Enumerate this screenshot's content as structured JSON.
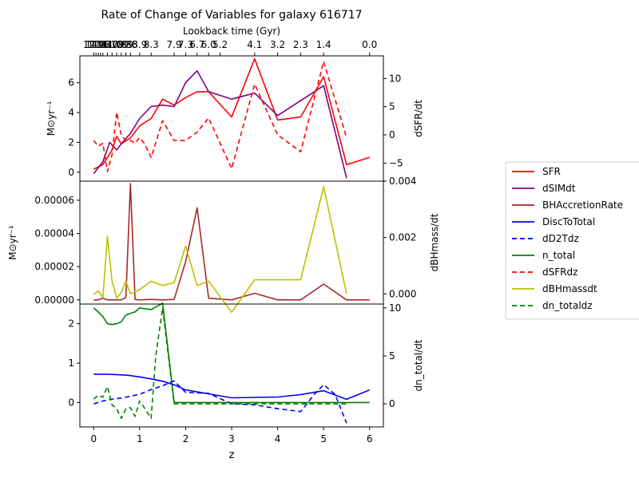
{
  "chart_data": {
    "type": "line",
    "title": "Rate of Change of Variables for galaxy 616717",
    "top_axis_label": "Lookback time (Gyr)",
    "top_ticks": [
      {
        "z": 0.0,
        "label": "12.9"
      },
      {
        "z": 0.05,
        "label": "12.8"
      },
      {
        "z": 0.1,
        "label": "12.6"
      },
      {
        "z": 0.15,
        "label": "12.3"
      },
      {
        "z": 0.2,
        "label": "12.1"
      },
      {
        "z": 0.3,
        "label": "11.7"
      },
      {
        "z": 0.4,
        "label": "11.2"
      },
      {
        "z": 0.5,
        "label": "10.8"
      },
      {
        "z": 0.6,
        "label": "10.3"
      },
      {
        "z": 0.7,
        "label": "9.9"
      },
      {
        "z": 0.8,
        "label": "9.5"
      },
      {
        "z": 1.0,
        "label": "8.9"
      },
      {
        "z": 1.25,
        "label": "8.3"
      },
      {
        "z": 1.75,
        "label": "7.9"
      },
      {
        "z": 2.0,
        "label": "7.3"
      },
      {
        "z": 2.25,
        "label": "6.7"
      },
      {
        "z": 2.5,
        "label": "6.0"
      },
      {
        "z": 2.75,
        "label": "5.2"
      },
      {
        "z": 3.5,
        "label": "4.1"
      },
      {
        "z": 4.0,
        "label": "3.2"
      },
      {
        "z": 4.5,
        "label": "2.3"
      },
      {
        "z": 5.0,
        "label": "1.4"
      },
      {
        "z": 6.0,
        "label": "0.0"
      }
    ],
    "xlabel": "z",
    "xlim": [
      -0.3,
      6.3
    ],
    "x_ticks": [
      0,
      1,
      2,
      3,
      4,
      5,
      6
    ],
    "panels": [
      {
        "ylabel_left": "M⊙yr⁻¹",
        "ylabel_right": "dSFR/dt",
        "ylim_left": [
          -0.6,
          7.8
        ],
        "ylim_right": [
          -8.2,
          14.0
        ],
        "yticks_left": [
          0,
          2,
          4,
          6
        ],
        "yticks_right": [
          -5,
          0,
          5,
          10
        ],
        "yticks_left_labels": [
          "0",
          "2",
          "4",
          "6"
        ],
        "yticks_right_labels": [
          "−5",
          "0",
          "5",
          "10"
        ],
        "series": [
          {
            "name": "SFR",
            "color": "#ff0000",
            "dash": false,
            "axis": "left",
            "x": [
              0,
              0.2,
              0.4,
              0.5,
              0.6,
              0.8,
              1.0,
              1.25,
              1.5,
              1.75,
              2.0,
              2.25,
              2.5,
              3.0,
              3.5,
              4.0,
              4.5,
              5.0,
              5.5,
              6.0
            ],
            "y": [
              0.2,
              0.5,
              1.5,
              2.4,
              1.9,
              2.3,
              3.1,
              3.6,
              4.9,
              4.5,
              5.0,
              5.4,
              5.4,
              3.7,
              7.6,
              3.5,
              3.7,
              6.4,
              0.5,
              1.0
            ]
          },
          {
            "name": "dSIMdt",
            "color": "#800080",
            "dash": false,
            "axis": "left",
            "x": [
              0,
              0.2,
              0.35,
              0.5,
              0.6,
              0.8,
              1.0,
              1.25,
              1.5,
              1.75,
              2.0,
              2.25,
              2.5,
              3.0,
              3.5,
              4.0,
              4.5,
              5.0,
              5.5
            ],
            "y": [
              -0.1,
              0.7,
              2.0,
              1.5,
              1.9,
              2.6,
              3.6,
              4.4,
              4.5,
              4.4,
              6.0,
              6.8,
              5.4,
              4.9,
              5.3,
              3.8,
              4.8,
              5.8,
              -0.4
            ]
          },
          {
            "name": "dSFRdz",
            "color": "#ff0000",
            "dash": true,
            "axis": "right",
            "x": [
              0,
              0.1,
              0.2,
              0.3,
              0.4,
              0.5,
              0.6,
              0.7,
              0.8,
              0.9,
              1.0,
              1.1,
              1.25,
              1.5,
              1.75,
              2.0,
              2.25,
              2.5,
              3.0,
              3.5,
              4.0,
              4.5,
              5.0,
              5.5
            ],
            "y": [
              -1.0,
              -2.0,
              -1.5,
              -6.5,
              -3.5,
              4.0,
              0.0,
              -1.0,
              -1.0,
              -1.5,
              -0.5,
              -1.5,
              -4.0,
              2.5,
              -1.0,
              -1.0,
              0.5,
              3.0,
              -6.0,
              9.0,
              0.0,
              -3.0,
              13.0,
              -0.5
            ]
          }
        ]
      },
      {
        "ylabel_left": "M⊙yr⁻¹",
        "ylabel_right": "dBHmass/dt",
        "ylim_left": [
          -2.5e-06,
          7.15e-05
        ],
        "ylim_right": [
          -0.00036,
          0.004
        ],
        "yticks_left": [
          0,
          2e-05,
          4e-05,
          6e-05
        ],
        "yticks_right": [
          0,
          0.002,
          0.004
        ],
        "yticks_left_labels": [
          "0.00000",
          "0.00002",
          "0.00004",
          "0.00006"
        ],
        "yticks_right_labels": [
          "0.000",
          "0.002",
          "0.004"
        ],
        "series": [
          {
            "name": "BHAccretionRate",
            "color": "#a52a2a",
            "dash": false,
            "axis": "left",
            "x": [
              0,
              0.1,
              0.2,
              0.3,
              0.4,
              0.5,
              0.6,
              0.7,
              0.8,
              0.9,
              1.0,
              1.25,
              1.5,
              1.75,
              2.0,
              2.25,
              2.5,
              3.0,
              3.5,
              4.0,
              4.5,
              5.0,
              5.5,
              6.0
            ],
            "y": [
              0,
              0,
              1e-06,
              0,
              0,
              0,
              0,
              1.5e-06,
              7e-05,
              3e-07,
              0,
              3e-07,
              0,
              3e-07,
              2.3e-05,
              5.55e-05,
              1e-06,
              0,
              4e-06,
              0,
              0,
              9.5e-06,
              0,
              0
            ]
          },
          {
            "name": "dBHmassdt",
            "color": "#bfbf00",
            "dash": false,
            "axis": "right",
            "x": [
              0,
              0.1,
              0.2,
              0.3,
              0.4,
              0.5,
              0.6,
              0.7,
              0.8,
              1.0,
              1.25,
              1.5,
              1.75,
              2.0,
              2.25,
              2.5,
              3.0,
              3.5,
              4.0,
              4.5,
              5.0,
              5.5
            ],
            "y": [
              -3e-05,
              0.00011,
              -0.00013,
              0.00205,
              0.00045,
              -0.00015,
              5e-05,
              0.00045,
              0.0,
              0.00015,
              0.00045,
              0.0003,
              0.0004,
              0.0017,
              0.0003,
              0.00045,
              -0.00065,
              0.0005,
              0.0005,
              0.0005,
              0.0038,
              0.0
            ]
          }
        ]
      },
      {
        "ylabel_left": "",
        "ylabel_right": "dn_total/dt",
        "ylim_left": [
          -0.62,
          2.5
        ],
        "ylim_right": [
          -2.4,
          10.4
        ],
        "yticks_left": [
          0,
          1,
          2
        ],
        "yticks_right": [
          0,
          5,
          10
        ],
        "yticks_left_labels": [
          "0",
          "1",
          "2"
        ],
        "yticks_right_labels": [
          "0",
          "5",
          "10"
        ],
        "series": [
          {
            "name": "n_total",
            "color": "#008000",
            "dash": false,
            "axis": "left",
            "x": [
              0,
              0.1,
              0.2,
              0.3,
              0.4,
              0.5,
              0.6,
              0.7,
              0.8,
              0.9,
              1.0,
              1.25,
              1.5,
              1.75,
              2.0,
              3.0,
              4.0,
              5.0,
              6.0
            ],
            "y": [
              2.4,
              2.3,
              2.18,
              2.0,
              1.98,
              2.0,
              2.05,
              2.22,
              2.26,
              2.3,
              2.4,
              2.36,
              2.52,
              0.0,
              0.0,
              0.0,
              0.0,
              0.0,
              0.0
            ]
          },
          {
            "name": "DiscToTotal",
            "color": "#0000ff",
            "dash": false,
            "axis": "left",
            "x": [
              0,
              0.25,
              0.5,
              0.75,
              1.0,
              1.25,
              1.5,
              1.75,
              2.0,
              2.5,
              3.0,
              3.5,
              4.0,
              4.5,
              5.0,
              5.5,
              6.0
            ],
            "y": [
              0.72,
              0.72,
              0.71,
              0.69,
              0.65,
              0.6,
              0.54,
              0.45,
              0.32,
              0.22,
              0.12,
              0.13,
              0.14,
              0.2,
              0.3,
              0.08,
              0.32
            ]
          },
          {
            "name": "dD2Tdz",
            "color": "#0000ff",
            "dash": true,
            "axis": "right",
            "x": [
              0,
              0.2,
              0.4,
              0.6,
              0.8,
              1.0,
              1.25,
              1.5,
              1.75,
              2.0,
              2.5,
              3.0,
              3.5,
              4.0,
              4.5,
              4.8,
              5.0,
              5.25,
              5.5
            ],
            "y": [
              0.0,
              0.3,
              0.5,
              0.6,
              0.8,
              1.0,
              1.5,
              1.9,
              2.4,
              1.2,
              1.1,
              0.0,
              -0.1,
              -0.5,
              -0.8,
              1.0,
              2.0,
              1.0,
              -2.0
            ]
          },
          {
            "name": "n_totaldz",
            "color": "#008000",
            "dash": true,
            "axis": "right",
            "x": [
              0,
              0.1,
              0.2,
              0.3,
              0.4,
              0.5,
              0.6,
              0.7,
              0.8,
              0.9,
              1.0,
              1.1,
              1.25,
              1.35,
              1.5,
              1.75,
              2.0,
              3.0,
              4.0,
              5.0,
              5.5
            ],
            "y": [
              0.5,
              0.9,
              0.7,
              1.8,
              -0.1,
              -0.5,
              -1.5,
              -0.5,
              -0.4,
              -1.3,
              0.3,
              -0.4,
              -1.5,
              5.0,
              10.0,
              0.0,
              0.0,
              0.0,
              0.0,
              0.0,
              0.0
            ]
          }
        ]
      }
    ],
    "legend": {
      "placement": "right",
      "entries": [
        {
          "name": "SFR",
          "color": "#ff0000",
          "dash": false
        },
        {
          "name": "dSIMdt",
          "color": "#800080",
          "dash": false
        },
        {
          "name": "BHAccretionRate",
          "color": "#a52a2a",
          "dash": false
        },
        {
          "name": "DiscToTotal",
          "color": "#0000ff",
          "dash": false
        },
        {
          "name": "dD2Tdz",
          "color": "#0000ff",
          "dash": true
        },
        {
          "name": "n_total",
          "color": "#008000",
          "dash": false
        },
        {
          "name": "dSFRdz",
          "color": "#ff0000",
          "dash": true
        },
        {
          "name": "dBHmassdt",
          "color": "#bfbf00",
          "dash": false
        },
        {
          "name": "dn_totaldz",
          "color": "#008000",
          "dash": true
        }
      ]
    },
    "grid": false
  }
}
